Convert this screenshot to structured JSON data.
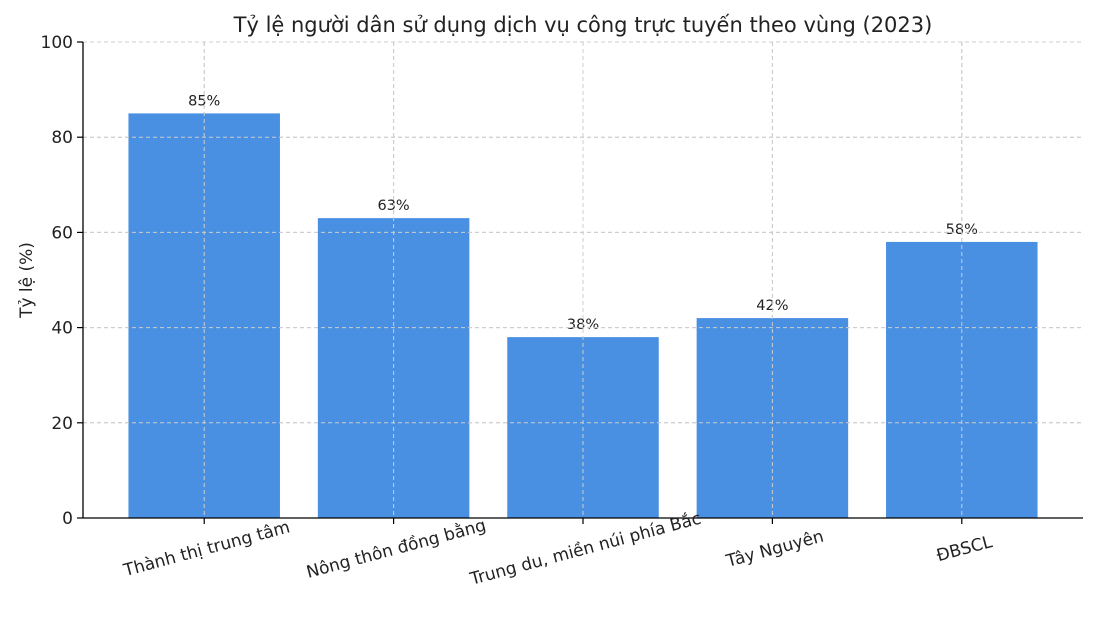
{
  "chart_data": {
    "type": "bar",
    "title": "Tỷ lệ người dân sử dụng dịch vụ công trực tuyến theo vùng (2023)",
    "xlabel": "",
    "ylabel": "Tỷ lệ (%)",
    "categories": [
      "Thành thị trung tâm",
      "Nông thôn đồng bằng",
      "Trung du, miền núi phía Bắc",
      "Tây Nguyên",
      "ĐBSCL"
    ],
    "values": [
      85,
      63,
      38,
      42,
      58
    ],
    "data_labels": [
      "85%",
      "63%",
      "38%",
      "42%",
      "58%"
    ],
    "ylim": [
      0,
      100
    ],
    "yticks": [
      0,
      20,
      40,
      60,
      80,
      100
    ],
    "ytick_labels": [
      "0",
      "20",
      "40",
      "60",
      "80",
      "100"
    ],
    "grid": true,
    "bar_color": "#4a90e2"
  }
}
